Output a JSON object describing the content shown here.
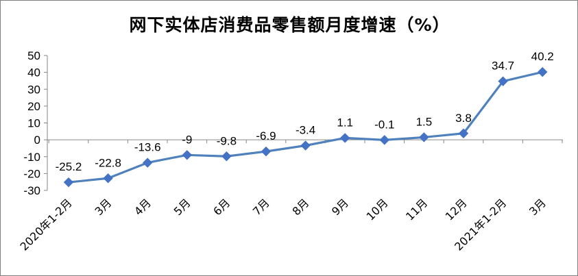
{
  "chart_data": {
    "type": "line",
    "title": "网下实体店消费品零售额月度增速（%）",
    "categories": [
      "2020年1-2月",
      "3月",
      "4月",
      "5月",
      "6月",
      "7月",
      "8月",
      "9月",
      "10月",
      "11月",
      "12月",
      "2021年1-2月",
      "3月"
    ],
    "series": [
      {
        "values": [
          -25.2,
          -22.8,
          -13.6,
          -9,
          -9.8,
          -6.9,
          -3.4,
          1.1,
          -0.1,
          1.5,
          3.8,
          34.7,
          40.2
        ]
      }
    ],
    "data_labels": [
      "-25.2",
      "-22.8",
      "-13.6",
      "-9",
      "-9.8",
      "-6.9",
      "-3.4",
      "1.1",
      "-0.1",
      "1.5",
      "3.8",
      "34.7",
      "40.2"
    ],
    "y_ticks": [
      "50",
      "40",
      "30",
      "20",
      "10",
      "0",
      "-10",
      "-20",
      "-30"
    ],
    "ylim": [
      -30,
      50
    ],
    "grid": false,
    "legend": "none",
    "colors": {
      "line": "#4f81bd",
      "marker": "#4472c4",
      "axis": "#868686"
    }
  }
}
